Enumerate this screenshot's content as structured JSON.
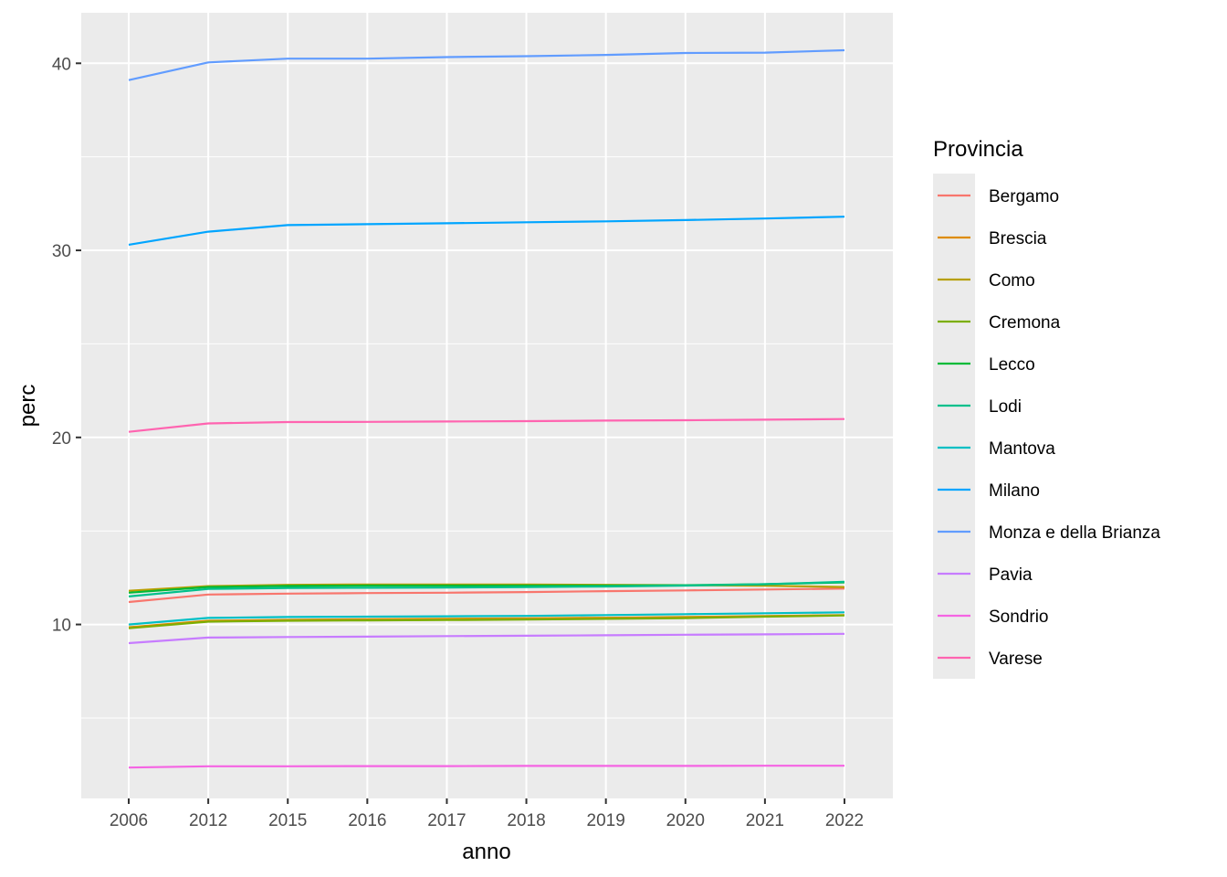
{
  "chart_data": {
    "type": "line",
    "title": "",
    "xlabel": "anno",
    "ylabel": "perc",
    "x": [
      "2006",
      "2012",
      "2015",
      "2016",
      "2017",
      "2018",
      "2019",
      "2020",
      "2021",
      "2022"
    ],
    "yticks": [
      10,
      20,
      30,
      40
    ],
    "ylim": [
      0.7,
      42.7
    ],
    "grid": true,
    "legend": {
      "title": "Provincia",
      "position": "right"
    },
    "series": [
      {
        "name": "Bergamo",
        "color": "#F8766D",
        "values": [
          11.2,
          11.6,
          11.65,
          11.68,
          11.7,
          11.73,
          11.78,
          11.82,
          11.87,
          11.92
        ]
      },
      {
        "name": "Brescia",
        "color": "#DE8C00",
        "values": [
          9.85,
          10.2,
          10.25,
          10.28,
          10.3,
          10.33,
          10.36,
          10.4,
          10.45,
          10.5
        ]
      },
      {
        "name": "Como",
        "color": "#B79F00",
        "values": [
          11.8,
          12.05,
          12.12,
          12.14,
          12.14,
          12.14,
          12.12,
          12.1,
          12.07,
          12.0
        ]
      },
      {
        "name": "Cremona",
        "color": "#7CAE00",
        "values": [
          9.8,
          10.15,
          10.2,
          10.22,
          10.24,
          10.26,
          10.3,
          10.34,
          10.42,
          10.48
        ]
      },
      {
        "name": "Lecco",
        "color": "#00BA38",
        "values": [
          11.7,
          12.0,
          12.06,
          12.08,
          12.08,
          12.08,
          12.08,
          12.1,
          12.15,
          12.25
        ]
      },
      {
        "name": "Lodi",
        "color": "#00C08B",
        "values": [
          11.5,
          11.9,
          11.95,
          11.96,
          11.97,
          12.0,
          12.03,
          12.08,
          12.15,
          12.28
        ]
      },
      {
        "name": "Mantova",
        "color": "#00BFC4",
        "values": [
          10.0,
          10.35,
          10.4,
          10.42,
          10.44,
          10.46,
          10.5,
          10.55,
          10.6,
          10.65
        ]
      },
      {
        "name": "Milano",
        "color": "#00A5FF",
        "values": [
          30.3,
          31.0,
          31.35,
          31.4,
          31.45,
          31.5,
          31.55,
          31.62,
          31.7,
          31.8
        ]
      },
      {
        "name": "Monza e della Brianza",
        "color": "#619CFF",
        "values": [
          39.1,
          40.05,
          40.25,
          40.25,
          40.33,
          40.38,
          40.45,
          40.55,
          40.57,
          40.7
        ]
      },
      {
        "name": "Pavia",
        "color": "#C77CFF",
        "values": [
          9.0,
          9.3,
          9.33,
          9.35,
          9.38,
          9.4,
          9.42,
          9.45,
          9.47,
          9.5
        ]
      },
      {
        "name": "Sondrio",
        "color": "#F564E3",
        "values": [
          2.35,
          2.42,
          2.42,
          2.43,
          2.43,
          2.44,
          2.44,
          2.44,
          2.45,
          2.45
        ]
      },
      {
        "name": "Varese",
        "color": "#FF64B0",
        "values": [
          20.3,
          20.75,
          20.82,
          20.83,
          20.85,
          20.87,
          20.9,
          20.92,
          20.95,
          20.98
        ]
      }
    ]
  }
}
